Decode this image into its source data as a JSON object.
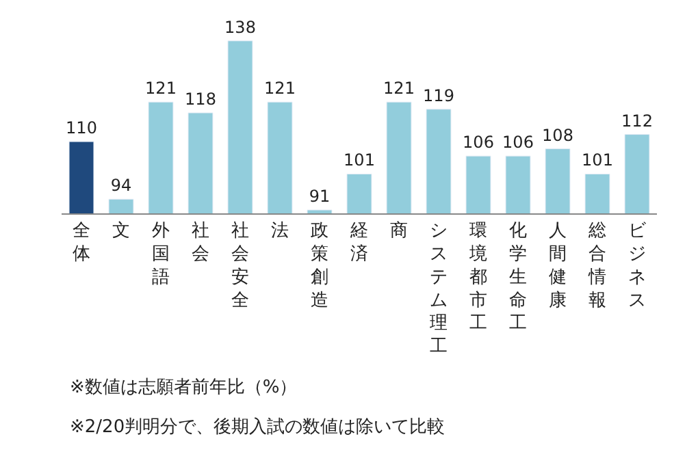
{
  "chart_data": {
    "type": "bar",
    "categories": [
      "全体",
      "文",
      "外国語",
      "社会",
      "社会安全",
      "法",
      "政策創造",
      "経済",
      "商",
      "システム理工",
      "環境都市工",
      "化学生命工",
      "人間健康",
      "総合情報",
      "ビジネス"
    ],
    "values": [
      110,
      94,
      121,
      118,
      138,
      121,
      91,
      101,
      121,
      119,
      106,
      106,
      108,
      101,
      112
    ],
    "colors": [
      "#1f497d",
      "#92cddc",
      "#92cddc",
      "#92cddc",
      "#92cddc",
      "#92cddc",
      "#92cddc",
      "#92cddc",
      "#92cddc",
      "#92cddc",
      "#92cddc",
      "#92cddc",
      "#92cddc",
      "#92cddc",
      "#92cddc"
    ],
    "data_labels": true,
    "tick_labels": "x",
    "legend": false,
    "annotations": [
      "※数値は志願者前年比（%）",
      "※2/20判明分で、後期入試の数値は除いて比較"
    ]
  }
}
